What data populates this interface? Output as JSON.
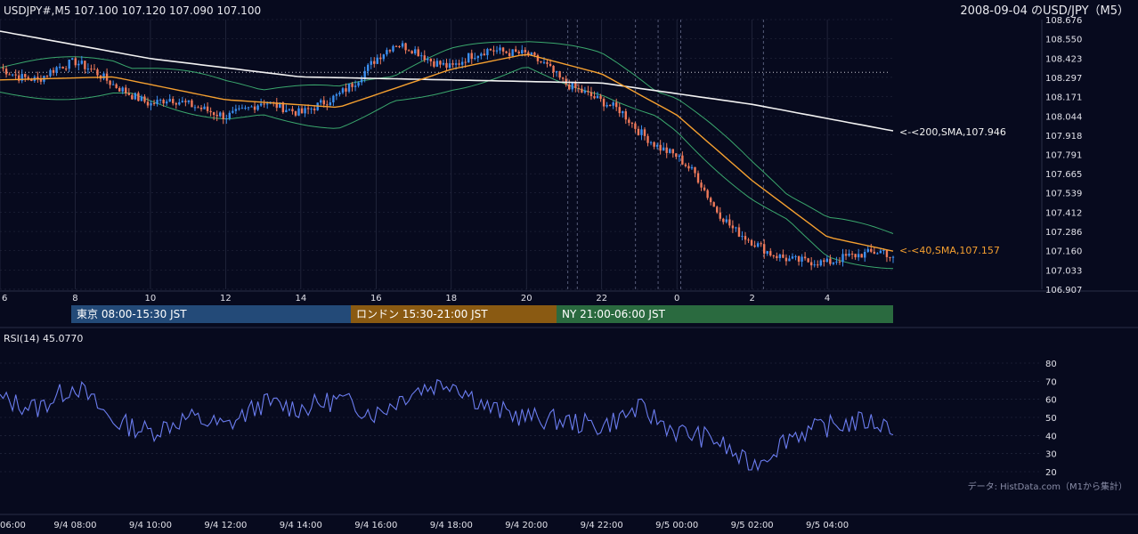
{
  "header": {
    "symbol_info": "USDJPY#,M5 107.100 107.120 107.090 107.100",
    "title": "2008-09-04 のUSD/JPY（M5）"
  },
  "colors": {
    "background": "#070a1e",
    "grid": "#2a2e45",
    "bull": "#3b8ff0",
    "bear": "#f07a5a",
    "sma40": "#f5a030",
    "sma200": "#f2f2f2",
    "bollinger": "#3aa76d",
    "rsi": "#6b7df0",
    "session_tokyo": "#234a78",
    "session_london": "#8a5a12",
    "session_ny": "#2a6a3f"
  },
  "price_panel": {
    "y_ticks": [
      "108.676",
      "108.550",
      "108.423",
      "108.297",
      "108.171",
      "108.044",
      "107.918",
      "107.791",
      "107.665",
      "107.539",
      "107.412",
      "107.286",
      "107.160",
      "107.033",
      "106.907"
    ],
    "x_ticks": [
      "6",
      "8",
      "10",
      "12",
      "14",
      "16",
      "18",
      "20",
      "22",
      "0",
      "2",
      "4"
    ],
    "sma200_label": "<-<200,SMA,107.946",
    "sma40_label": "<-<40,SMA,107.157",
    "reference_level": 108.33
  },
  "sessions": [
    {
      "label": "東京 08:00-15:30 JST"
    },
    {
      "label": "ロンドン 15:30-21:00 JST"
    },
    {
      "label": "NY 21:00-06:00 JST"
    }
  ],
  "rsi_panel": {
    "label": "RSI(14) 45.0770",
    "y_ticks": [
      "80",
      "70",
      "60",
      "50",
      "40",
      "30",
      "20"
    ],
    "source_note": "データ: HistData.com（M1から集計）"
  },
  "bottom_axis": {
    "ticks": [
      "06:00",
      "9/4 08:00",
      "9/4 10:00",
      "9/4 12:00",
      "9/4 14:00",
      "9/4 16:00",
      "9/4 18:00",
      "9/4 20:00",
      "9/4 22:00",
      "9/5 00:00",
      "9/5 02:00",
      "9/5 04:00"
    ]
  },
  "chart_data": {
    "type": "line",
    "title": "2008-09-04 のUSD/JPY（M5）",
    "x_unit": "hours since 06:00 JST 9/4",
    "price_series": [
      {
        "name": "USDJPY#,M5",
        "kind": "close",
        "x": [
          0,
          0.5,
          1,
          1.5,
          2,
          2.5,
          3,
          3.5,
          4,
          4.5,
          5,
          5.5,
          6,
          6.5,
          7,
          7.5,
          8,
          8.5,
          9,
          9.5,
          10,
          10.5,
          11,
          11.5,
          12,
          12.5,
          13,
          13.5,
          14,
          14.5,
          15,
          15.5,
          16,
          16.5,
          17,
          17.5,
          18,
          18.5,
          19,
          19.5,
          20,
          20.5,
          21,
          21.5,
          22,
          22.5,
          23,
          23.5,
          23.75
        ],
        "values": [
          108.36,
          108.3,
          108.28,
          108.36,
          108.4,
          108.34,
          108.25,
          108.18,
          108.12,
          108.16,
          108.12,
          108.08,
          108.04,
          108.08,
          108.14,
          108.1,
          108.06,
          108.12,
          108.18,
          108.28,
          108.42,
          108.52,
          108.48,
          108.4,
          108.36,
          108.44,
          108.48,
          108.46,
          108.45,
          108.38,
          108.26,
          108.2,
          108.14,
          108.08,
          107.94,
          107.84,
          107.78,
          107.66,
          107.44,
          107.3,
          107.22,
          107.14,
          107.1,
          107.09,
          107.08,
          107.12,
          107.14,
          107.16,
          107.1
        ]
      },
      {
        "name": "200,SMA",
        "x": [
          0,
          4,
          8,
          12,
          16,
          20,
          23.75
        ],
        "values": [
          108.6,
          108.42,
          108.3,
          108.28,
          108.26,
          108.12,
          107.946
        ]
      },
      {
        "name": "40,SMA",
        "x": [
          0,
          3,
          6,
          9,
          12,
          14,
          16,
          18,
          20,
          22,
          23.75
        ],
        "values": [
          108.28,
          108.3,
          108.15,
          108.1,
          108.35,
          108.45,
          108.32,
          108.05,
          107.62,
          107.25,
          107.157
        ]
      }
    ],
    "rsi_series": {
      "name": "RSI(14)",
      "x": [
        0,
        1,
        2,
        3,
        4,
        5,
        6,
        7,
        8,
        9,
        10,
        11,
        12,
        13,
        14,
        15,
        16,
        17,
        18,
        19,
        20,
        21,
        22,
        23,
        23.75
      ],
      "values": [
        60,
        55,
        68,
        48,
        42,
        50,
        45,
        58,
        55,
        60,
        52,
        65,
        70,
        55,
        50,
        48,
        45,
        55,
        42,
        38,
        22,
        40,
        45,
        48,
        45.077
      ]
    },
    "y_range": [
      106.907,
      108.676
    ],
    "rsi_range": [
      20,
      80
    ],
    "grid": true
  }
}
